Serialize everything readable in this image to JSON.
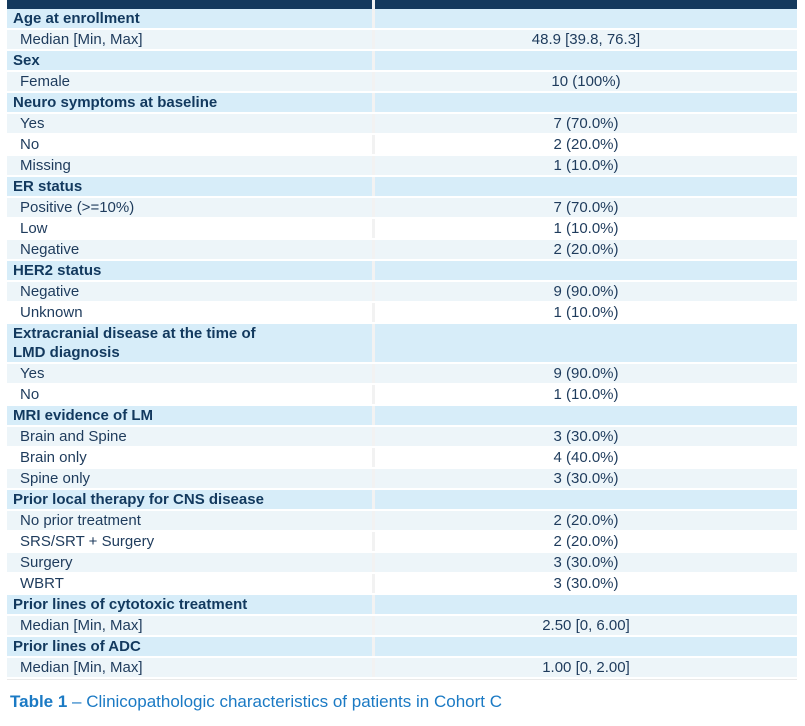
{
  "table": {
    "colors": {
      "top_bar": "#14395d",
      "section_row_bg": "#d7edf9",
      "data_row_alt_bg": "#edf5f9",
      "data_row_bg": "#ffffff",
      "section_text": "#12395e",
      "data_text": "#1e3b5c",
      "column_divider": "#f2f2f2",
      "caption_blue": "#1b7ac4"
    },
    "sections": [
      {
        "label": "Age at enrollment",
        "rows": [
          {
            "label": "Median [Min, Max]",
            "value": "48.9 [39.8, 76.3]"
          }
        ]
      },
      {
        "label": "Sex",
        "rows": [
          {
            "label": "Female",
            "value": "10 (100%)"
          }
        ]
      },
      {
        "label": "Neuro symptoms at baseline",
        "rows": [
          {
            "label": "Yes",
            "value": "7 (70.0%)"
          },
          {
            "label": "No",
            "value": "2 (20.0%)"
          },
          {
            "label": "Missing",
            "value": "1 (10.0%)"
          }
        ]
      },
      {
        "label": "ER status",
        "rows": [
          {
            "label": "Positive (>=10%)",
            "value": "7 (70.0%)"
          },
          {
            "label": "Low",
            "value": "1 (10.0%)"
          },
          {
            "label": "Negative",
            "value": "2 (20.0%)"
          }
        ]
      },
      {
        "label": "HER2 status",
        "rows": [
          {
            "label": "Negative",
            "value": "9 (90.0%)"
          },
          {
            "label": "Unknown",
            "value": "1 (10.0%)"
          }
        ]
      },
      {
        "label": "Extracranial disease at the time of\nLMD diagnosis",
        "rows": [
          {
            "label": "Yes",
            "value": "9 (90.0%)"
          },
          {
            "label": "No",
            "value": "1 (10.0%)"
          }
        ]
      },
      {
        "label": "MRI evidence of LM",
        "rows": [
          {
            "label": "Brain and Spine",
            "value": "3 (30.0%)"
          },
          {
            "label": "Brain only",
            "value": "4 (40.0%)"
          },
          {
            "label": "Spine only",
            "value": "3 (30.0%)"
          }
        ]
      },
      {
        "label": "Prior local therapy for CNS disease",
        "rows": [
          {
            "label": "No prior treatment",
            "value": "2 (20.0%)"
          },
          {
            "label": "SRS/SRT + Surgery",
            "value": "2 (20.0%)"
          },
          {
            "label": "Surgery",
            "value": "3 (30.0%)"
          },
          {
            "label": "WBRT",
            "value": "3 (30.0%)"
          }
        ]
      },
      {
        "label": "Prior lines of cytotoxic treatment",
        "rows": [
          {
            "label": "Median [Min, Max]",
            "value": "2.50 [0, 6.00]"
          }
        ]
      },
      {
        "label": "Prior lines of ADC",
        "rows": [
          {
            "label": "Median [Min, Max]",
            "value": "1.00 [0, 2.00]"
          }
        ]
      }
    ]
  },
  "caption": {
    "prefix": "Table 1",
    "separator": " – ",
    "text": "Clinicopathologic characteristics of patients in Cohort C"
  }
}
